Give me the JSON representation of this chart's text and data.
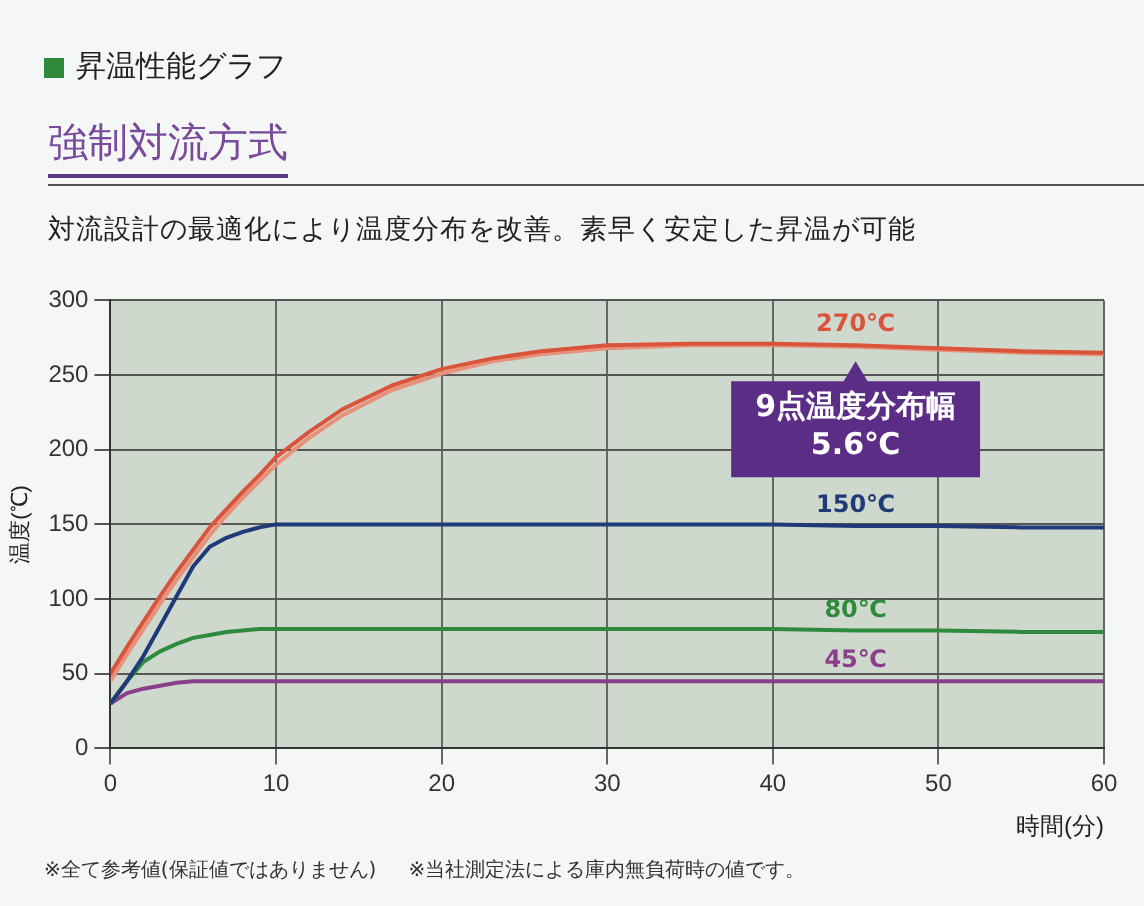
{
  "chart_data": {
    "type": "line",
    "title": "昇温性能グラフ",
    "subtitle": "強制対流方式",
    "xlabel": "時間(分)",
    "ylabel": "温度(℃)",
    "annotations": [
      "対流設計の最適化により温度分布を改善。素早く安定した昇温が可能",
      {
        "text": "9点温度分布幅\n5.6℃",
        "x": 45,
        "y": 270
      },
      "※全て参考値(保証値ではありません)",
      "※当社測定法による庫内無負荷時の値です。"
    ],
    "x": [
      0,
      1,
      2,
      3,
      4,
      5,
      6,
      7,
      8,
      9,
      10,
      12,
      14,
      17,
      20,
      23,
      26,
      30,
      35,
      40,
      45,
      50,
      55,
      60
    ],
    "series": [
      {
        "name": "270℃",
        "color": "#d9543a",
        "values": [
          50,
          68,
          85,
          102,
          118,
          133,
          148,
          160,
          172,
          183,
          195,
          212,
          227,
          243,
          254,
          261,
          266,
          270,
          271,
          271,
          270,
          268,
          266,
          265
        ]
      },
      {
        "color": "#e8907a",
        "values": [
          45,
          63,
          80,
          97,
          113,
          128,
          143,
          156,
          168,
          179,
          190,
          208,
          223,
          240,
          251,
          259,
          264,
          268,
          270,
          270,
          269,
          267,
          265,
          264
        ]
      },
      {
        "name": "150℃",
        "color": "#1f3a78",
        "values": [
          30,
          45,
          62,
          82,
          102,
          122,
          135,
          141,
          145,
          148,
          150,
          150,
          150,
          150,
          150,
          150,
          150,
          150,
          150,
          150,
          149,
          149,
          148,
          148
        ]
      },
      {
        "name": "80℃",
        "color": "#2e8b3e",
        "values": [
          30,
          45,
          58,
          65,
          70,
          74,
          76,
          78,
          79,
          80,
          80,
          80,
          80,
          80,
          80,
          80,
          80,
          80,
          80,
          80,
          79,
          79,
          78,
          78
        ]
      },
      {
        "name": "45℃",
        "color": "#8a3f8a",
        "values": [
          30,
          37,
          40,
          42,
          44,
          45,
          45,
          45,
          45,
          45,
          45,
          45,
          45,
          45,
          45,
          45,
          45,
          45,
          45,
          45,
          45,
          45,
          45,
          45
        ]
      }
    ],
    "xlim": [
      0,
      60
    ],
    "xticks": [
      0,
      10,
      20,
      30,
      40,
      50,
      60
    ],
    "ylim": [
      0,
      300
    ],
    "yticks": [
      0,
      50,
      100,
      150,
      200,
      250,
      300
    ],
    "grid": true,
    "legend": false,
    "marker": "none",
    "line_style": "solid"
  }
}
